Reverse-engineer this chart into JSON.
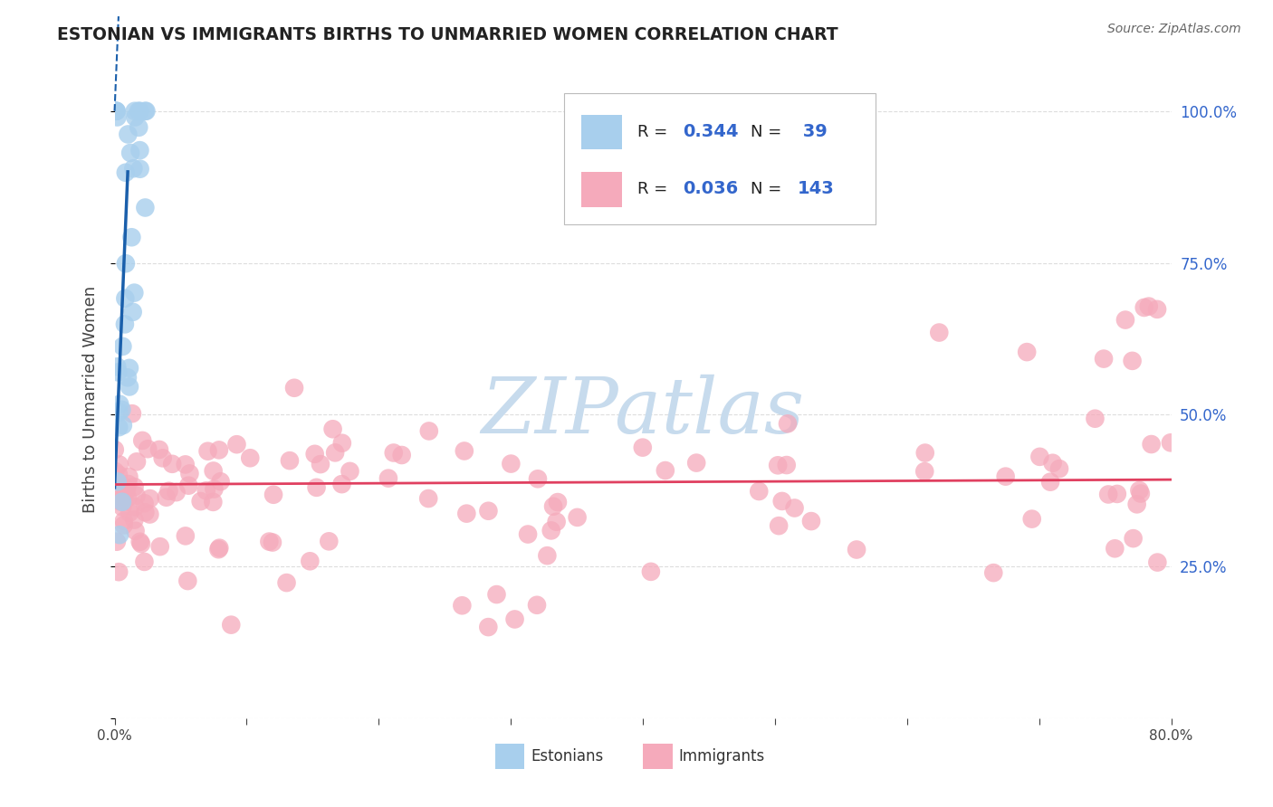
{
  "title": "ESTONIAN VS IMMIGRANTS BIRTHS TO UNMARRIED WOMEN CORRELATION CHART",
  "source": "Source: ZipAtlas.com",
  "ylabel": "Births to Unmarried Women",
  "xmin": 0.0,
  "xmax": 0.8,
  "ymin": 0.0,
  "ymax": 1.05,
  "estonian_R": 0.344,
  "estonian_N": 39,
  "immigrant_R": 0.036,
  "immigrant_N": 143,
  "estonian_color": "#A8CFED",
  "immigrant_color": "#F5AABB",
  "estonian_line_color": "#1A5FAB",
  "immigrant_line_color": "#E04060",
  "legend_label_estonian": "Estonians",
  "legend_label_immigrant": "Immigrants",
  "watermark": "ZIPatlas",
  "watermark_color_r": 0.78,
  "watermark_color_g": 0.86,
  "watermark_color_b": 0.93,
  "background_color": "#FFFFFF",
  "grid_color": "#DDDDDD",
  "title_color": "#222222",
  "r_n_color": "#3366CC",
  "right_tick_color": "#3366CC"
}
